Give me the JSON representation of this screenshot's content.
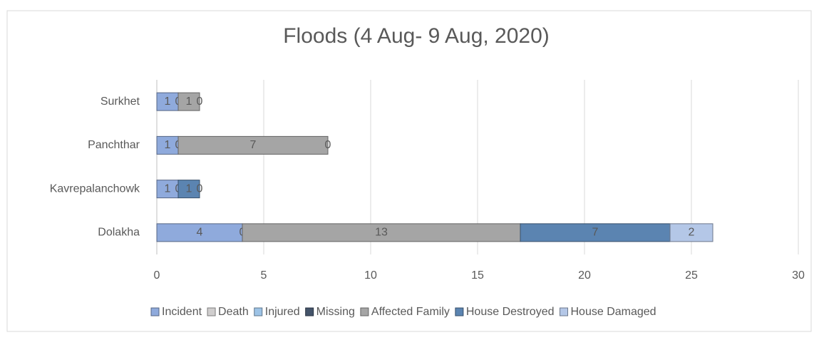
{
  "chart_data": {
    "type": "stacked_barh",
    "title": "Floods (4 Aug- 9 Aug, 2020)",
    "categories": [
      "Dolakha",
      "Kavrepalanchowk",
      "Panchthar",
      "Surkhet"
    ],
    "series": [
      {
        "name": "Incident",
        "color": "#8faadc",
        "values": [
          4,
          1,
          1,
          1
        ]
      },
      {
        "name": "Death",
        "color": "#d0cece",
        "values": [
          0,
          0,
          0,
          0
        ]
      },
      {
        "name": "Injured",
        "color": "#9dc3e6",
        "values": [
          null,
          null,
          null,
          null
        ]
      },
      {
        "name": "Missing",
        "color": "#44546a",
        "values": [
          null,
          null,
          null,
          null
        ]
      },
      {
        "name": "Affected Family",
        "color": "#a5a5a5",
        "values": [
          13,
          null,
          7,
          1
        ]
      },
      {
        "name": "House Destroyed",
        "color": "#5b84b1",
        "values": [
          7,
          1,
          0,
          0
        ]
      },
      {
        "name": "House Damaged",
        "color": "#b4c7e7",
        "values": [
          2,
          0,
          null,
          null
        ]
      }
    ],
    "xlim": [
      0,
      30
    ],
    "xticks": [
      0,
      5,
      10,
      15,
      20,
      25,
      30
    ],
    "grid": true,
    "legend": "bottom"
  }
}
